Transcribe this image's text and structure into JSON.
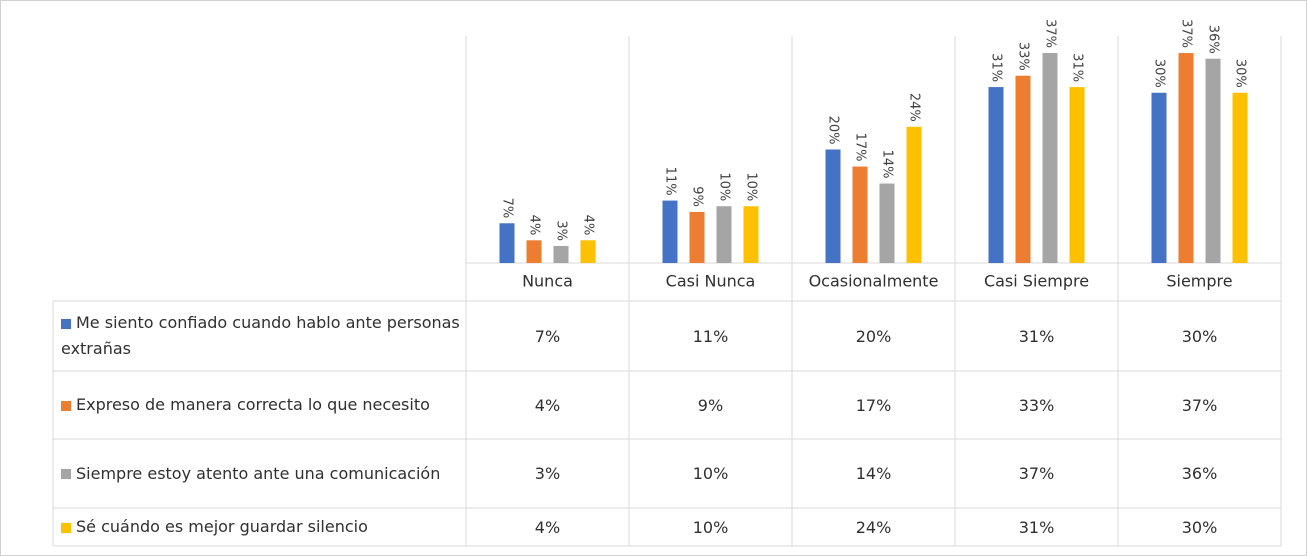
{
  "chart_data": {
    "type": "bar",
    "categories": [
      "Nunca",
      "Casi Nunca",
      "Ocasionalmente",
      "Casi Siempre",
      "Siempre"
    ],
    "ylim": [
      0,
      40
    ],
    "series": [
      {
        "name": "Me siento confiado cuando hablo ante personas extrañas",
        "color": "#4472c4",
        "values": [
          7,
          11,
          20,
          31,
          30
        ],
        "value_labels": [
          "7%",
          "11%",
          "20%",
          "31%",
          "30%"
        ]
      },
      {
        "name": "Expreso de manera correcta lo que necesito",
        "color": "#ed7d31",
        "values": [
          4,
          9,
          17,
          33,
          37
        ],
        "value_labels": [
          "4%",
          "9%",
          "17%",
          "33%",
          "37%"
        ]
      },
      {
        "name": "Siempre estoy atento ante una comunicación",
        "color": "#a5a5a5",
        "values": [
          3,
          10,
          14,
          37,
          36
        ],
        "value_labels": [
          "3%",
          "10%",
          "14%",
          "37%",
          "36%"
        ]
      },
      {
        "name": "Sé cuándo es mejor guardar silencio",
        "color": "#ffc000",
        "values": [
          4,
          10,
          24,
          31,
          30
        ],
        "value_labels": [
          "4%",
          "10%",
          "24%",
          "31%",
          "30%"
        ]
      }
    ]
  }
}
